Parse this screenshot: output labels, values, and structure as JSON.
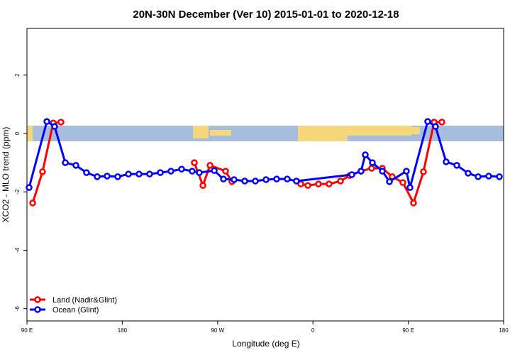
{
  "chart_data": {
    "type": "line",
    "title": "20N-30N December (Ver 10)   2015-01-01 to 2020-12-18",
    "x_label": "Longitude (deg E)",
    "y_label": "XCO2 - MLO trend (ppm)",
    "xlim": [
      90,
      540
    ],
    "ylim": [
      -6.42,
      3.6
    ],
    "xticks": [
      {
        "value": 90,
        "label": "90 E"
      },
      180,
      {
        "value": 270,
        "label": "90 W"
      },
      {
        "value": 360,
        "label": "0"
      },
      {
        "value": 450,
        "label": "90 E"
      },
      {
        "value": 540,
        "label": "180"
      }
    ],
    "yticks": [
      -6,
      -4,
      -2,
      0,
      2
    ],
    "legend": "bottom-left",
    "series": [
      {
        "name": "Land (Nadir&Glint)",
        "color": "#ff0000",
        "x": [
          95.4,
          104.7,
          114.8,
          122.1,
          null,
          248.0,
          256.1,
          262.8,
          277.5,
          283.5,
          null,
          348.5,
          355.2,
          365.2,
          375.2,
          386.0,
          394.7,
          405.4,
          415.4,
          425.5,
          434.8,
          444.9,
          454.9,
          464.3,
          474.4,
          481.7
        ],
        "values": [
          -2.38,
          -1.31,
          0.36,
          0.39,
          null,
          -1.0,
          -1.78,
          -1.09,
          -1.29,
          -1.65,
          null,
          -1.73,
          -1.78,
          -1.73,
          -1.73,
          -1.63,
          -1.44,
          -1.29,
          -1.19,
          -1.19,
          -1.48,
          -1.68,
          -2.38,
          -1.31,
          0.39,
          0.39
        ]
      },
      {
        "name": "Ocean (Glint)",
        "color": "#0000ff",
        "x": [
          92.0,
          108.8,
          116.1,
          126.2,
          136.2,
          146.2,
          156.3,
          165.7,
          175.7,
          185.8,
          195.8,
          205.8,
          215.9,
          225.9,
          236.0,
          246.0,
          252.7,
          266.8,
          275.5,
          285.5,
          295.6,
          305.6,
          315.7,
          325.7,
          335.7,
          344.4,
          396.7,
          405.4,
          409.4,
          416.1,
          425.5,
          432.2,
          448.2,
          451.6,
          468.3,
          475.7,
          485.7,
          495.8,
          506.5,
          515.9,
          525.9,
          536.0
        ],
        "values": [
          -1.85,
          0.41,
          0.24,
          -1.0,
          -1.09,
          -1.34,
          -1.48,
          -1.46,
          -1.48,
          -1.39,
          -1.39,
          -1.39,
          -1.34,
          -1.29,
          -1.22,
          -1.29,
          -1.34,
          -1.27,
          -1.56,
          -1.58,
          -1.63,
          -1.63,
          -1.58,
          -1.56,
          -1.56,
          -1.63,
          -1.41,
          -1.29,
          -0.73,
          -1.0,
          -1.29,
          -1.65,
          -1.29,
          -1.85,
          0.41,
          0.24,
          -0.97,
          -1.09,
          -1.36,
          -1.48,
          -1.46,
          -1.48
        ]
      }
    ]
  }
}
